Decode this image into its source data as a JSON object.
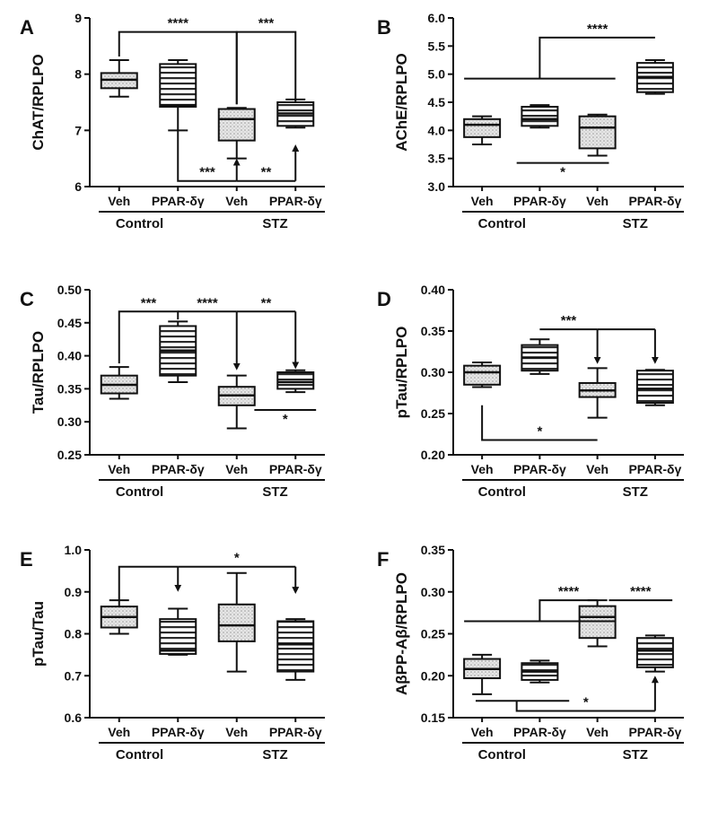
{
  "chart_data": [
    {
      "panel": "A",
      "type": "box",
      "ylabel": "ChAT/RPLPO",
      "ylim": [
        6,
        9
      ],
      "yticks": [
        6,
        7,
        8,
        9
      ],
      "tick_decimals": 0,
      "categories": [
        "Veh",
        "PPAR-δγ",
        "Veh",
        "PPAR-δγ"
      ],
      "groups": [
        "Control",
        "STZ"
      ],
      "fills": [
        "dots",
        "lines",
        "dots",
        "lines"
      ],
      "boxes": [
        {
          "min": 7.6,
          "q1": 7.75,
          "median": 7.9,
          "q3": 8.02,
          "max": 8.25
        },
        {
          "min": 7.0,
          "q1": 7.42,
          "median": 7.45,
          "q3": 8.18,
          "max": 8.25
        },
        {
          "min": 6.5,
          "q1": 6.82,
          "median": 7.2,
          "q3": 7.38,
          "max": 7.4
        },
        {
          "min": 7.05,
          "q1": 7.08,
          "median": 7.3,
          "q3": 7.5,
          "max": 7.55
        }
      ],
      "annotations": [
        {
          "label": "****",
          "kind": "bracket-top",
          "from": 0,
          "to": 2,
          "y": 8.75
        },
        {
          "label": "***",
          "kind": "bracket-top",
          "from": 2,
          "to": 3,
          "y": 8.75,
          "to_y": 7.55
        },
        {
          "label": "***",
          "kind": "line-bottom",
          "from": 1,
          "to": 2,
          "y": 6.1,
          "start_y": 7.0,
          "end_y": 6.5
        },
        {
          "label": "**",
          "kind": "line-bottom",
          "from": 2,
          "to": 3,
          "y": 6.1,
          "end_y": 6.75
        }
      ]
    },
    {
      "panel": "B",
      "type": "box",
      "ylabel": "AChE/RPLPO",
      "ylim": [
        3.0,
        6.0
      ],
      "yticks": [
        3.0,
        3.5,
        4.0,
        4.5,
        5.0,
        5.5,
        6.0
      ],
      "tick_decimals": 1,
      "categories": [
        "Veh",
        "PPAR-δγ",
        "Veh",
        "PPAR-δγ"
      ],
      "groups": [
        "Control",
        "STZ"
      ],
      "fills": [
        "dots",
        "lines",
        "dots",
        "lines"
      ],
      "boxes": [
        {
          "min": 3.75,
          "q1": 3.88,
          "median": 4.1,
          "q3": 4.2,
          "max": 4.25
        },
        {
          "min": 4.05,
          "q1": 4.08,
          "median": 4.2,
          "q3": 4.42,
          "max": 4.45
        },
        {
          "min": 3.55,
          "q1": 3.68,
          "median": 4.05,
          "q3": 4.25,
          "max": 4.28
        },
        {
          "min": 4.65,
          "q1": 4.68,
          "median": 4.95,
          "q3": 5.2,
          "max": 5.25
        }
      ],
      "annotations": [
        {
          "label": "",
          "kind": "hline",
          "from": 0,
          "to": 2,
          "y": 4.92
        },
        {
          "label": "****",
          "kind": "bracket-up",
          "from": 1,
          "to": 3,
          "y": 5.65,
          "start_y": 4.92
        },
        {
          "label": "*",
          "kind": "hline-below",
          "from": 0.6,
          "to": 2.2,
          "y": 3.42
        }
      ]
    },
    {
      "panel": "C",
      "type": "box",
      "ylabel": "Tau/RPLPO",
      "ylim": [
        0.25,
        0.5
      ],
      "yticks": [
        0.25,
        0.3,
        0.35,
        0.4,
        0.45,
        0.5
      ],
      "tick_decimals": 2,
      "categories": [
        "Veh",
        "PPAR-δγ",
        "Veh",
        "PPAR-δγ"
      ],
      "groups": [
        "Control",
        "STZ"
      ],
      "fills": [
        "dots",
        "lines",
        "dots",
        "lines"
      ],
      "boxes": [
        {
          "min": 0.335,
          "q1": 0.343,
          "median": 0.356,
          "q3": 0.37,
          "max": 0.383
        },
        {
          "min": 0.36,
          "q1": 0.37,
          "median": 0.408,
          "q3": 0.445,
          "max": 0.452
        },
        {
          "min": 0.29,
          "q1": 0.325,
          "median": 0.34,
          "q3": 0.353,
          "max": 0.37
        },
        {
          "min": 0.345,
          "q1": 0.35,
          "median": 0.36,
          "q3": 0.375,
          "max": 0.378
        }
      ],
      "annotations": [
        {
          "label": "***",
          "kind": "bracket-top",
          "from": 0,
          "to": 1,
          "y": 0.467,
          "to_y": 0.455
        },
        {
          "label": "****",
          "kind": "arrow-top",
          "from": 1,
          "to": 2,
          "y": 0.467,
          "end_y": 0.378
        },
        {
          "label": "**",
          "kind": "arrow-top",
          "from": 2,
          "to": 3,
          "y": 0.467,
          "end_y": 0.38
        },
        {
          "label": "*",
          "kind": "hline-below",
          "from": 2.3,
          "to": 3.35,
          "y": 0.318
        }
      ]
    },
    {
      "panel": "D",
      "type": "box",
      "ylabel": "pTau/RPLPO",
      "ylim": [
        0.2,
        0.4
      ],
      "yticks": [
        0.2,
        0.25,
        0.3,
        0.35,
        0.4
      ],
      "tick_decimals": 2,
      "categories": [
        "Veh",
        "PPAR-δγ",
        "Veh",
        "PPAR-δγ"
      ],
      "groups": [
        "Control",
        "STZ"
      ],
      "fills": [
        "dots",
        "lines",
        "dots",
        "lines"
      ],
      "boxes": [
        {
          "min": 0.282,
          "q1": 0.285,
          "median": 0.3,
          "q3": 0.308,
          "max": 0.312
        },
        {
          "min": 0.298,
          "q1": 0.302,
          "median": 0.318,
          "q3": 0.333,
          "max": 0.34
        },
        {
          "min": 0.245,
          "q1": 0.27,
          "median": 0.278,
          "q3": 0.287,
          "max": 0.305
        },
        {
          "min": 0.26,
          "q1": 0.263,
          "median": 0.28,
          "q3": 0.302,
          "max": 0.303
        }
      ],
      "annotations": [
        {
          "label": "***",
          "kind": "arrow-top",
          "from": 1,
          "to": 2,
          "y": 0.352,
          "end_y": 0.31
        },
        {
          "label": "",
          "kind": "arrow-top",
          "from": 2,
          "to": 3,
          "y": 0.352,
          "end_y": 0.31
        },
        {
          "label": "*",
          "kind": "line-bottom",
          "from": 0,
          "to": 2,
          "y": 0.218,
          "start_y": 0.26,
          "end_y": 0.218
        }
      ]
    },
    {
      "panel": "E",
      "type": "box",
      "ylabel": "pTau/Tau",
      "ylim": [
        0.6,
        1.0
      ],
      "yticks": [
        0.6,
        0.7,
        0.8,
        0.9,
        1.0
      ],
      "tick_decimals": 1,
      "categories": [
        "Veh",
        "PPAR-δγ",
        "Veh",
        "PPAR-δγ"
      ],
      "groups": [
        "Control",
        "STZ"
      ],
      "fills": [
        "dots",
        "lines",
        "dots",
        "lines"
      ],
      "boxes": [
        {
          "min": 0.8,
          "q1": 0.815,
          "median": 0.84,
          "q3": 0.865,
          "max": 0.88
        },
        {
          "min": 0.75,
          "q1": 0.752,
          "median": 0.76,
          "q3": 0.835,
          "max": 0.86
        },
        {
          "min": 0.71,
          "q1": 0.782,
          "median": 0.82,
          "q3": 0.87,
          "max": 0.945
        },
        {
          "min": 0.69,
          "q1": 0.71,
          "median": 0.775,
          "q3": 0.83,
          "max": 0.835
        }
      ],
      "annotations": [
        {
          "label": "",
          "kind": "arrow-top",
          "from": 0,
          "to": 1,
          "y": 0.96,
          "start_y": 0.88,
          "end_y": 0.9
        },
        {
          "label": "*",
          "kind": "arrow-top",
          "from": 1,
          "to": 3,
          "y": 0.96,
          "end_y": 0.895
        }
      ]
    },
    {
      "panel": "F",
      "type": "box",
      "ylabel": "AβPP-Aβ/RPLPO",
      "ylim": [
        0.15,
        0.35
      ],
      "yticks": [
        0.15,
        0.2,
        0.25,
        0.3,
        0.35
      ],
      "tick_decimals": 2,
      "categories": [
        "Veh",
        "PPAR-δγ",
        "Veh",
        "PPAR-δγ"
      ],
      "groups": [
        "Control",
        "STZ"
      ],
      "fills": [
        "dots",
        "lines",
        "dots",
        "lines"
      ],
      "boxes": [
        {
          "min": 0.178,
          "q1": 0.197,
          "median": 0.208,
          "q3": 0.22,
          "max": 0.225
        },
        {
          "min": 0.192,
          "q1": 0.195,
          "median": 0.205,
          "q3": 0.215,
          "max": 0.218
        },
        {
          "min": 0.235,
          "q1": 0.245,
          "median": 0.27,
          "q3": 0.283,
          "max": 0.29
        },
        {
          "min": 0.205,
          "q1": 0.21,
          "median": 0.23,
          "q3": 0.245,
          "max": 0.248
        }
      ],
      "annotations": [
        {
          "label": "",
          "kind": "hline",
          "from": 0,
          "to": 2,
          "y": 0.265
        },
        {
          "label": "****",
          "kind": "bracket-up",
          "from": 1,
          "to": 2,
          "y": 0.29,
          "start_y": 0.265
        },
        {
          "label": "****",
          "kind": "hline-above",
          "from": 2.2,
          "to": 3.3,
          "y": 0.29
        },
        {
          "label": "",
          "kind": "hline",
          "from": 0.2,
          "to": 1.2,
          "y": 0.17
        },
        {
          "label": "*",
          "kind": "line-bottom",
          "from": 0.6,
          "to": 3,
          "y": 0.158,
          "start_y": 0.17,
          "end_y": 0.2
        }
      ]
    }
  ]
}
